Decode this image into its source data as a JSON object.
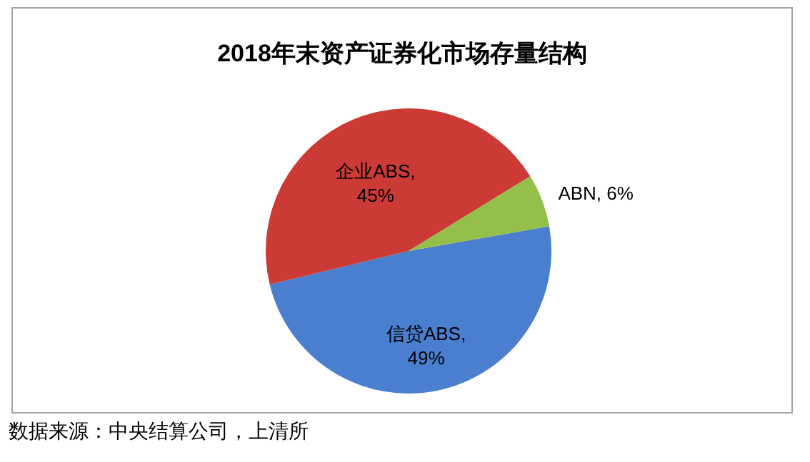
{
  "chart_data": {
    "type": "pie",
    "title": "2018年末资产证券化市场存量结构",
    "categories": [
      "信贷ABS",
      "企业ABS",
      "ABN"
    ],
    "values": [
      49,
      45,
      6
    ],
    "value_labels": [
      ", 49%",
      ", 45%",
      ", 6%"
    ],
    "colors": [
      "#4a7ecf",
      "#cc3a36",
      "#93bf4a"
    ],
    "legend": false,
    "annotations": [
      "数据来源：中央结算公司，上清所"
    ]
  }
}
